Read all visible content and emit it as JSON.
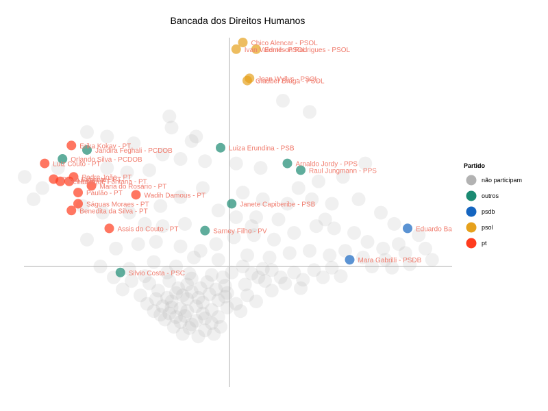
{
  "chart_data": {
    "type": "scatter",
    "title": "Bancada dos Direitos Humanos",
    "xlabel": "",
    "ylabel": "",
    "xlim": [
      -1,
      1
    ],
    "ylim": [
      -1,
      1
    ],
    "grid": false,
    "legend": {
      "title": "Partido",
      "placement": "right",
      "entries": [
        {
          "key": "nao",
          "label": "não participam",
          "color": "#aaaaaa"
        },
        {
          "key": "outros",
          "label": "outros",
          "color": "#1b8a72"
        },
        {
          "key": "psdb",
          "label": "psdb",
          "color": "#1565c0"
        },
        {
          "key": "psol",
          "label": "psol",
          "color": "#e6a11c"
        },
        {
          "key": "pt",
          "label": "pt",
          "color": "#ff3c1e"
        }
      ]
    },
    "label_colors": {
      "outros": "#f07c6e",
      "psdb": "#f07c6e",
      "psol": "#f07c6e",
      "pt": "#f07c6e"
    },
    "highlighted": [
      {
        "label": "Chico Alencar - PSOL",
        "party": "psol",
        "x": 0.06,
        "y": 1.0
      },
      {
        "label": "Ivan Valente - PSOL",
        "party": "psol",
        "x": 0.03,
        "y": 0.97
      },
      {
        "label": "Edmilson Rodrigues - PSOL",
        "party": "psol",
        "x": 0.12,
        "y": 0.97
      },
      {
        "label": "Jean Wyllys - PSOL",
        "party": "psol",
        "x": 0.09,
        "y": 0.84
      },
      {
        "label": "Glauber Braga - PSOL",
        "party": "psol",
        "x": 0.08,
        "y": 0.83
      },
      {
        "label": "Erika Kokay - PT",
        "party": "pt",
        "x": -0.71,
        "y": 0.54
      },
      {
        "label": "Jandira Feghali - PCDOB",
        "party": "outros",
        "x": -0.64,
        "y": 0.52
      },
      {
        "label": "Luiza Erundina - PSB",
        "party": "outros",
        "x": -0.04,
        "y": 0.53
      },
      {
        "label": "Orlando Silva - PCDOB",
        "party": "outros",
        "x": -0.75,
        "y": 0.48
      },
      {
        "label": "Luiz Couto - PT",
        "party": "pt",
        "x": -0.83,
        "y": 0.46
      },
      {
        "label": "Arnaldo Jordy - PPS",
        "party": "outros",
        "x": 0.26,
        "y": 0.46
      },
      {
        "label": "Raul Jungmann - PPS",
        "party": "outros",
        "x": 0.32,
        "y": 0.43
      },
      {
        "label": "Padre João - PT",
        "party": "pt",
        "x": -0.7,
        "y": 0.4
      },
      {
        "label": "Paulo Pimenta - PT",
        "party": "pt",
        "x": -0.79,
        "y": 0.39
      },
      {
        "label": "Benedita - PT",
        "party": "pt",
        "x": -0.76,
        "y": 0.38
      },
      {
        "label": "Henrique Fontana - PT",
        "party": "pt",
        "x": -0.72,
        "y": 0.38
      },
      {
        "label": "Maria do Rosário - PT",
        "party": "pt",
        "x": -0.62,
        "y": 0.36
      },
      {
        "label": "Paulão - PT",
        "party": "pt",
        "x": -0.68,
        "y": 0.33
      },
      {
        "label": "Wadih Damous - PT",
        "party": "pt",
        "x": -0.42,
        "y": 0.32
      },
      {
        "label": "Ságuas Moraes - PT",
        "party": "pt",
        "x": -0.68,
        "y": 0.28
      },
      {
        "label": "Janete Capiberibe - PSB",
        "party": "outros",
        "x": 0.01,
        "y": 0.28
      },
      {
        "label": "Benedita da Silva - PT",
        "party": "pt",
        "x": -0.71,
        "y": 0.25
      },
      {
        "label": "Assis do Couto - PT",
        "party": "pt",
        "x": -0.54,
        "y": 0.17
      },
      {
        "label": "Sarney Filho - PV",
        "party": "outros",
        "x": -0.11,
        "y": 0.16
      },
      {
        "label": "Eduardo Ba",
        "party": "psdb",
        "x": 0.8,
        "y": 0.17
      },
      {
        "label": "Mara Gabrilli - PSDB",
        "party": "psdb",
        "x": 0.54,
        "y": 0.03
      },
      {
        "label": "Silvio Costa - PSC",
        "party": "outros",
        "x": -0.49,
        "y": -0.05
      }
    ],
    "background_points": [
      [
        0.24,
        0.74
      ],
      [
        0.36,
        0.69
      ],
      [
        -0.27,
        0.67
      ],
      [
        -0.26,
        0.62
      ],
      [
        -0.17,
        0.56
      ],
      [
        -0.15,
        0.58
      ],
      [
        -0.55,
        0.58
      ],
      [
        -0.64,
        0.6
      ],
      [
        -0.43,
        0.55
      ],
      [
        -0.3,
        0.5
      ],
      [
        -0.22,
        0.48
      ],
      [
        -0.11,
        0.47
      ],
      [
        0.03,
        0.46
      ],
      [
        0.14,
        0.44
      ],
      [
        0.61,
        0.46
      ],
      [
        0.51,
        0.4
      ],
      [
        0.4,
        0.38
      ],
      [
        0.31,
        0.35
      ],
      [
        -0.36,
        0.43
      ],
      [
        -0.46,
        0.42
      ],
      [
        -0.55,
        0.44
      ],
      [
        -0.84,
        0.35
      ],
      [
        -0.88,
        0.3
      ],
      [
        -0.66,
        0.27
      ],
      [
        -0.57,
        0.24
      ],
      [
        -0.45,
        0.24
      ],
      [
        -0.31,
        0.27
      ],
      [
        -0.22,
        0.31
      ],
      [
        -0.12,
        0.35
      ],
      [
        0.06,
        0.33
      ],
      [
        0.15,
        0.3
      ],
      [
        0.26,
        0.28
      ],
      [
        0.37,
        0.3
      ],
      [
        0.46,
        0.28
      ],
      [
        0.58,
        0.3
      ],
      [
        0.68,
        0.24
      ],
      [
        0.74,
        0.19
      ],
      [
        0.85,
        0.14
      ],
      [
        0.76,
        0.1
      ],
      [
        0.69,
        0.08
      ],
      [
        0.62,
        0.11
      ],
      [
        0.56,
        0.15
      ],
      [
        0.47,
        0.17
      ],
      [
        0.39,
        0.18
      ],
      [
        0.29,
        0.15
      ],
      [
        0.2,
        0.12
      ],
      [
        0.11,
        0.14
      ],
      [
        0.02,
        0.13
      ],
      [
        -0.06,
        0.1
      ],
      [
        -0.13,
        0.07
      ],
      [
        -0.22,
        0.09
      ],
      [
        -0.33,
        0.11
      ],
      [
        -0.41,
        0.1
      ],
      [
        -0.51,
        0.08
      ],
      [
        -0.64,
        0.12
      ],
      [
        -0.34,
        0.02
      ],
      [
        -0.24,
        0.0
      ],
      [
        -0.16,
        0.04
      ],
      [
        -0.05,
        0.03
      ],
      [
        0.08,
        0.05
      ],
      [
        0.18,
        0.04
      ],
      [
        0.27,
        0.06
      ],
      [
        0.36,
        0.07
      ],
      [
        0.45,
        0.05
      ],
      [
        0.52,
        0.07
      ],
      [
        0.6,
        0.04
      ],
      [
        0.7,
        0.03
      ],
      [
        0.79,
        0.06
      ],
      [
        0.81,
        0.01
      ],
      [
        0.73,
        -0.01
      ],
      [
        0.64,
        0.0
      ],
      [
        0.46,
        -0.01
      ],
      [
        0.38,
        -0.03
      ],
      [
        0.29,
        -0.05
      ],
      [
        0.19,
        -0.03
      ],
      [
        0.1,
        -0.06
      ],
      [
        0.01,
        -0.05
      ],
      [
        -0.08,
        -0.07
      ],
      [
        -0.18,
        -0.06
      ],
      [
        -0.28,
        -0.05
      ],
      [
        -0.38,
        -0.08
      ],
      [
        -0.44,
        -0.12
      ],
      [
        -0.36,
        -0.14
      ],
      [
        -0.27,
        -0.12
      ],
      [
        -0.19,
        -0.15
      ],
      [
        -0.1,
        -0.13
      ],
      [
        -0.02,
        -0.16
      ],
      [
        0.07,
        -0.15
      ],
      [
        0.16,
        -0.12
      ],
      [
        0.25,
        -0.14
      ],
      [
        0.33,
        -0.11
      ],
      [
        0.42,
        -0.09
      ],
      [
        0.5,
        -0.08
      ],
      [
        -0.32,
        -0.2
      ],
      [
        -0.24,
        -0.22
      ],
      [
        -0.17,
        -0.21
      ],
      [
        -0.09,
        -0.23
      ],
      [
        -0.01,
        -0.22
      ],
      [
        0.08,
        -0.24
      ],
      [
        -0.4,
        -0.24
      ],
      [
        -0.33,
        -0.27
      ],
      [
        -0.26,
        -0.29
      ],
      [
        -0.19,
        -0.27
      ],
      [
        -0.12,
        -0.3
      ],
      [
        -0.05,
        -0.28
      ],
      [
        0.03,
        -0.31
      ],
      [
        -0.37,
        -0.31
      ],
      [
        -0.3,
        -0.33
      ],
      [
        -0.22,
        -0.35
      ],
      [
        -0.15,
        -0.33
      ],
      [
        -0.08,
        -0.36
      ],
      [
        -0.01,
        -0.34
      ],
      [
        -0.34,
        -0.37
      ],
      [
        -0.27,
        -0.39
      ],
      [
        -0.2,
        -0.41
      ],
      [
        -0.12,
        -0.39
      ],
      [
        -0.05,
        -0.42
      ],
      [
        -0.29,
        -0.44
      ],
      [
        -0.22,
        -0.46
      ],
      [
        -0.15,
        -0.45
      ],
      [
        -0.08,
        -0.47
      ],
      [
        -0.25,
        -0.5
      ],
      [
        -0.18,
        -0.51
      ],
      [
        -0.11,
        -0.53
      ],
      [
        -0.04,
        -0.5
      ],
      [
        -0.21,
        -0.56
      ],
      [
        -0.14,
        -0.58
      ],
      [
        -0.07,
        -0.56
      ],
      [
        -0.28,
        -0.26
      ],
      [
        -0.21,
        -0.24
      ],
      [
        -0.14,
        -0.26
      ],
      [
        -0.06,
        -0.19
      ],
      [
        -0.26,
        -0.34
      ],
      [
        -0.19,
        -0.37
      ],
      [
        -0.11,
        -0.43
      ],
      [
        -0.17,
        -0.48
      ],
      [
        -0.31,
        -0.4
      ],
      [
        -0.24,
        -0.42
      ],
      [
        -0.02,
        -0.25
      ],
      [
        0.05,
        -0.37
      ],
      [
        0.12,
        -0.29
      ],
      [
        0.19,
        -0.2
      ],
      [
        0.23,
        -0.09
      ],
      [
        0.32,
        -0.18
      ],
      [
        -0.48,
        -0.19
      ],
      [
        -0.45,
        -0.02
      ],
      [
        -0.58,
        0.0
      ],
      [
        -0.52,
        -0.09
      ],
      [
        0.88,
        0.08
      ],
      [
        0.91,
        0.03
      ],
      [
        -0.92,
        0.4
      ],
      [
        -0.77,
        0.44
      ],
      [
        0.03,
        0.22
      ],
      [
        -0.05,
        0.25
      ],
      [
        0.12,
        0.22
      ],
      [
        0.22,
        0.21
      ],
      [
        -0.3,
        0.18
      ],
      [
        -0.38,
        0.19
      ],
      [
        -0.2,
        0.19
      ],
      [
        0.06,
        0.0
      ],
      [
        0.13,
        -0.09
      ],
      [
        -0.17,
        -0.1
      ],
      [
        -0.23,
        -0.18
      ],
      [
        -0.13,
        -0.18
      ],
      [
        -0.03,
        -0.09
      ],
      [
        0.15,
        -0.02
      ],
      [
        0.1,
        0.18
      ],
      [
        0.43,
        0.21
      ]
    ]
  }
}
